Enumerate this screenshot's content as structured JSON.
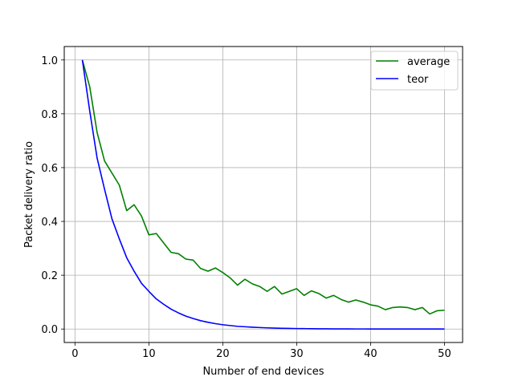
{
  "chart_data": {
    "type": "line",
    "title": "",
    "xlabel": "Number of end devices",
    "ylabel": "Packet delivery ratio",
    "xlim": [
      -1.45,
      52.45
    ],
    "ylim": [
      -0.05,
      1.05
    ],
    "xticks": [
      0,
      10,
      20,
      30,
      40,
      50
    ],
    "yticks": [
      0.0,
      0.2,
      0.4,
      0.6,
      0.8,
      1.0
    ],
    "xtick_labels": [
      "0",
      "10",
      "20",
      "30",
      "40",
      "50"
    ],
    "ytick_labels": [
      "0.0",
      "0.2",
      "0.4",
      "0.6",
      "0.8",
      "1.0"
    ],
    "grid": true,
    "legend_position": "top-right",
    "x": [
      1,
      2,
      3,
      4,
      5,
      6,
      7,
      8,
      9,
      10,
      11,
      12,
      13,
      14,
      15,
      16,
      17,
      18,
      19,
      20,
      21,
      22,
      23,
      24,
      25,
      26,
      27,
      28,
      29,
      30,
      31,
      32,
      33,
      34,
      35,
      36,
      37,
      38,
      39,
      40,
      41,
      42,
      43,
      44,
      45,
      46,
      47,
      48,
      49,
      50
    ],
    "series": [
      {
        "name": "average",
        "color": "#008000",
        "values": [
          1.0,
          0.9,
          0.73,
          0.625,
          0.58,
          0.535,
          0.44,
          0.462,
          0.42,
          0.35,
          0.355,
          0.32,
          0.285,
          0.28,
          0.26,
          0.256,
          0.225,
          0.215,
          0.227,
          0.21,
          0.19,
          0.163,
          0.185,
          0.168,
          0.158,
          0.14,
          0.158,
          0.13,
          0.14,
          0.15,
          0.125,
          0.142,
          0.132,
          0.115,
          0.125,
          0.11,
          0.1,
          0.108,
          0.1,
          0.09,
          0.085,
          0.072,
          0.08,
          0.082,
          0.08,
          0.072,
          0.08,
          0.056,
          0.068,
          0.07
        ]
      },
      {
        "name": "teor",
        "color": "#0000ff",
        "values": [
          1.0,
          0.81,
          0.635,
          0.52,
          0.41,
          0.335,
          0.265,
          0.215,
          0.17,
          0.14,
          0.112,
          0.092,
          0.074,
          0.06,
          0.048,
          0.039,
          0.031,
          0.025,
          0.02,
          0.016,
          0.013,
          0.01,
          0.0085,
          0.0068,
          0.0055,
          0.0044,
          0.0035,
          0.0028,
          0.0023,
          0.0018,
          0.0015,
          0.0012,
          0.001,
          0.0008,
          0.0006,
          0.0005,
          0.0004,
          0.0003,
          0.0003,
          0.0002,
          0.0002,
          0.0001,
          0.0001,
          0.0001,
          0.0001,
          0.0,
          0.0,
          0.0,
          0.0,
          0.0
        ]
      }
    ]
  }
}
